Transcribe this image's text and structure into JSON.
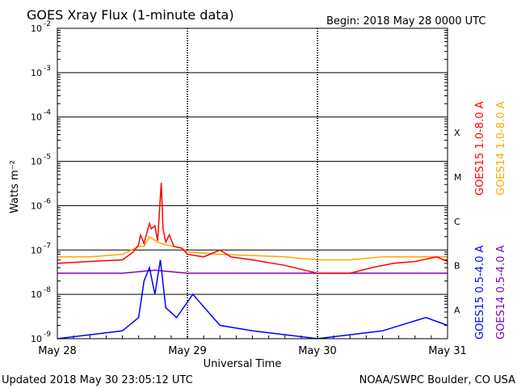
{
  "header": {
    "title": "GOES Xray Flux (1-minute data)",
    "begin": "Begin:  2018 May 28 0000 UTC"
  },
  "footer": {
    "updated": "Updated 2018 May 30 23:05:12 UTC",
    "credit": "NOAA/SWPC Boulder, CO USA"
  },
  "colors": {
    "goes15_long": "#ff0000",
    "goes14_long": "#ffa500",
    "goes15_short": "#0000ff",
    "goes14_short": "#7f00bf",
    "grid": "#000000",
    "background": "#ffffff"
  },
  "chart_data": {
    "type": "line",
    "title": "GOES Xray Flux (1-minute data)",
    "xlabel": "Universal Time",
    "ylabel": "Watts m⁻²",
    "y_scale": "log",
    "ylim": [
      1e-09,
      0.01
    ],
    "xlim": [
      "2018-05-28",
      "2018-05-31"
    ],
    "x_ticks": [
      "May 28",
      "May 29",
      "May 30",
      "May 31"
    ],
    "y_ticks": [
      {
        "base": "10",
        "exp": "-9"
      },
      {
        "base": "10",
        "exp": "-8"
      },
      {
        "base": "10",
        "exp": "-7"
      },
      {
        "base": "10",
        "exp": "-6"
      },
      {
        "base": "10",
        "exp": "-5"
      },
      {
        "base": "10",
        "exp": "-4"
      },
      {
        "base": "10",
        "exp": "-3"
      },
      {
        "base": "10",
        "exp": "-2"
      }
    ],
    "flare_classes": [
      {
        "label": "A",
        "value": 1e-08
      },
      {
        "label": "B",
        "value": 1e-07
      },
      {
        "label": "C",
        "value": 1e-06
      },
      {
        "label": "M",
        "value": 1e-05
      },
      {
        "label": "X",
        "value": 0.0001
      }
    ],
    "grid": true,
    "legend_position": "right",
    "series": [
      {
        "name": "GOES15 1.0-8.0 A",
        "color": "#ff0000",
        "points": [
          [
            "2018-05-28 00:00",
            5e-08
          ],
          [
            "2018-05-28 06:00",
            5.5e-08
          ],
          [
            "2018-05-28 12:00",
            6e-08
          ],
          [
            "2018-05-28 14:00",
            9e-08
          ],
          [
            "2018-05-28 15:00",
            1.3e-07
          ],
          [
            "2018-05-28 15:20",
            2.2e-07
          ],
          [
            "2018-05-28 16:00",
            1.4e-07
          ],
          [
            "2018-05-28 17:00",
            4e-07
          ],
          [
            "2018-05-28 17:20",
            3e-07
          ],
          [
            "2018-05-28 18:00",
            3.5e-07
          ],
          [
            "2018-05-28 18:30",
            1.6e-07
          ],
          [
            "2018-05-28 19:10",
            3.3e-06
          ],
          [
            "2018-05-28 19:30",
            3e-07
          ],
          [
            "2018-05-28 20:00",
            1.5e-07
          ],
          [
            "2018-05-28 20:40",
            2.2e-07
          ],
          [
            "2018-05-28 21:30",
            1.2e-07
          ],
          [
            "2018-05-28 23:00",
            1.1e-07
          ],
          [
            "2018-05-29 00:00",
            8e-08
          ],
          [
            "2018-05-29 03:00",
            7e-08
          ],
          [
            "2018-05-29 06:00",
            1e-07
          ],
          [
            "2018-05-29 08:00",
            7e-08
          ],
          [
            "2018-05-29 12:00",
            6e-08
          ],
          [
            "2018-05-29 18:00",
            4.5e-08
          ],
          [
            "2018-05-30 00:00",
            3e-08
          ],
          [
            "2018-05-30 06:00",
            3e-08
          ],
          [
            "2018-05-30 10:00",
            4e-08
          ],
          [
            "2018-05-30 14:00",
            5e-08
          ],
          [
            "2018-05-30 18:00",
            5.5e-08
          ],
          [
            "2018-05-30 22:00",
            7e-08
          ],
          [
            "2018-05-31 00:00",
            5.5e-08
          ]
        ]
      },
      {
        "name": "GOES14 1.0-8.0 A",
        "color": "#ffa500",
        "points": [
          [
            "2018-05-28 00:00",
            7e-08
          ],
          [
            "2018-05-28 06:00",
            7e-08
          ],
          [
            "2018-05-28 12:00",
            8e-08
          ],
          [
            "2018-05-28 15:00",
            1.2e-07
          ],
          [
            "2018-05-28 16:00",
            1.2e-07
          ],
          [
            "2018-05-28 17:00",
            2e-07
          ],
          [
            "2018-05-28 18:30",
            1.5e-07
          ],
          [
            "2018-05-28 20:00",
            1.3e-07
          ],
          [
            "2018-05-28 23:00",
            1.1e-07
          ],
          [
            "2018-05-29 00:00",
            9e-08
          ],
          [
            "2018-05-29 06:00",
            8e-08
          ],
          [
            "2018-05-29 12:00",
            7.5e-08
          ],
          [
            "2018-05-29 18:00",
            7e-08
          ],
          [
            "2018-05-30 00:00",
            6e-08
          ],
          [
            "2018-05-30 06:00",
            6e-08
          ],
          [
            "2018-05-30 12:00",
            7e-08
          ],
          [
            "2018-05-30 18:00",
            7e-08
          ],
          [
            "2018-05-31 00:00",
            7e-08
          ]
        ]
      },
      {
        "name": "GOES15 0.5-4.0 A",
        "color": "#0000ff",
        "points": [
          [
            "2018-05-28 00:00",
            1e-09
          ],
          [
            "2018-05-28 12:00",
            1.5e-09
          ],
          [
            "2018-05-28 15:00",
            3e-09
          ],
          [
            "2018-05-28 16:00",
            2e-08
          ],
          [
            "2018-05-28 17:00",
            4e-08
          ],
          [
            "2018-05-28 18:00",
            1e-08
          ],
          [
            "2018-05-28 19:00",
            6e-08
          ],
          [
            "2018-05-28 20:00",
            5e-09
          ],
          [
            "2018-05-28 22:00",
            3e-09
          ],
          [
            "2018-05-29 01:00",
            1e-08
          ],
          [
            "2018-05-29 06:00",
            2e-09
          ],
          [
            "2018-05-29 12:00",
            1.5e-09
          ],
          [
            "2018-05-30 00:00",
            1e-09
          ],
          [
            "2018-05-30 12:00",
            1.5e-09
          ],
          [
            "2018-05-30 20:00",
            3e-09
          ],
          [
            "2018-05-31 00:00",
            2e-09
          ]
        ]
      },
      {
        "name": "GOES14 0.5-4.0 A",
        "color": "#7f00bf",
        "points": [
          [
            "2018-05-28 00:00",
            3e-08
          ],
          [
            "2018-05-28 12:00",
            3e-08
          ],
          [
            "2018-05-28 18:00",
            3.5e-08
          ],
          [
            "2018-05-29 00:00",
            3e-08
          ],
          [
            "2018-05-29 12:00",
            3e-08
          ],
          [
            "2018-05-30 00:00",
            3e-08
          ],
          [
            "2018-05-30 12:00",
            3e-08
          ],
          [
            "2018-05-31 00:00",
            3e-08
          ]
        ]
      }
    ]
  }
}
